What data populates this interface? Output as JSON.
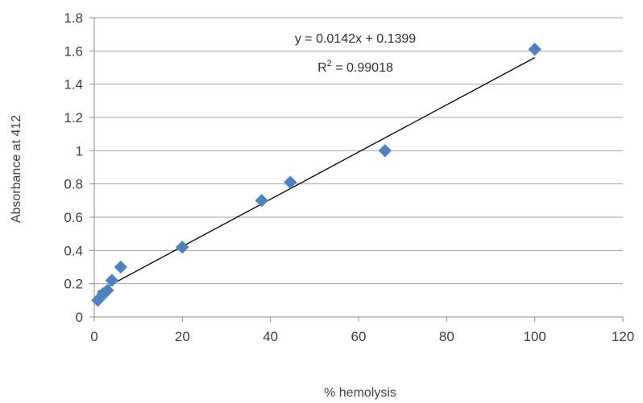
{
  "chart_data": {
    "type": "scatter",
    "title": "",
    "xlabel": "% hemolysis",
    "ylabel": "Absorbance at 412",
    "xlim": [
      0,
      120
    ],
    "ylim": [
      0,
      1.8
    ],
    "x_ticks": [
      "0",
      "20",
      "40",
      "60",
      "80",
      "100",
      "120"
    ],
    "y_ticks": [
      "0",
      "0.2",
      "0.4",
      "0.6",
      "0.8",
      "1",
      "1.2",
      "1.4",
      "1.6",
      "1.8"
    ],
    "grid": "horizontal",
    "legend": "none",
    "marker": "diamond",
    "marker_color": "#4f81bd",
    "trendline_color": "#000000",
    "series": [
      {
        "x": [
          0.8,
          1.5,
          2.0,
          3.0,
          4.0,
          6.0,
          20,
          38,
          44.5,
          66,
          100
        ],
        "y": [
          0.1,
          0.12,
          0.14,
          0.16,
          0.22,
          0.3,
          0.42,
          0.7,
          0.81,
          1.0,
          1.61
        ]
      }
    ],
    "trendline": {
      "slope": 0.0142,
      "intercept": 0.1399,
      "x_range": [
        0.8,
        100
      ],
      "equation": "y = 0.0142x + 0.1399",
      "r2_prefix": "R",
      "r2_power": "2",
      "r2_value": " = 0.99018"
    }
  }
}
